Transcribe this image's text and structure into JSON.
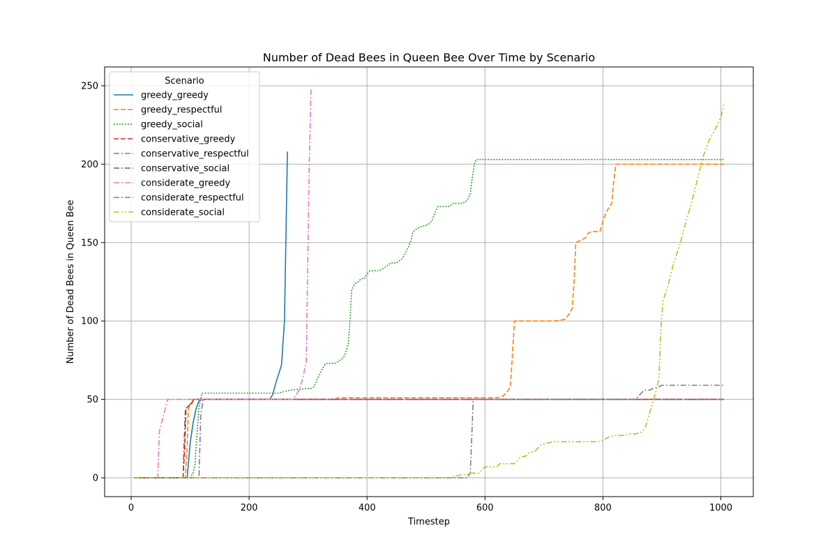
{
  "chart_data": {
    "type": "line",
    "title": "Number of Dead Bees in Queen Bee Over Time by Scenario",
    "xlabel": "Timestep",
    "ylabel": "Number of Dead Bees in Queen Bee",
    "xlim": [
      -45,
      1055
    ],
    "ylim": [
      -12,
      262
    ],
    "xticks": [
      0,
      200,
      400,
      600,
      800,
      1000
    ],
    "yticks": [
      0,
      50,
      100,
      150,
      200,
      250
    ],
    "grid": true,
    "legend": {
      "title": "Scenario",
      "location": "upper left"
    },
    "series": [
      {
        "name": "greedy_greedy",
        "color": "#1f77b4",
        "dash": "solid",
        "points": [
          [
            5,
            0
          ],
          [
            95,
            0
          ],
          [
            100,
            22
          ],
          [
            105,
            35
          ],
          [
            110,
            44
          ],
          [
            115,
            49
          ],
          [
            120,
            50
          ],
          [
            235,
            50
          ],
          [
            240,
            53
          ],
          [
            245,
            60
          ],
          [
            250,
            66
          ],
          [
            255,
            72
          ],
          [
            260,
            100
          ],
          [
            265,
            208
          ]
        ]
      },
      {
        "name": "greedy_respectful",
        "color": "#ff7f0e",
        "dash": "dashed",
        "points": [
          [
            5,
            0
          ],
          [
            92,
            0
          ],
          [
            95,
            20
          ],
          [
            97,
            44
          ],
          [
            100,
            46
          ],
          [
            103,
            47
          ],
          [
            105,
            49
          ],
          [
            108,
            50
          ],
          [
            345,
            50
          ],
          [
            350,
            51
          ],
          [
            620,
            51
          ],
          [
            630,
            52
          ],
          [
            638,
            55
          ],
          [
            643,
            58
          ],
          [
            646,
            75
          ],
          [
            650,
            100
          ],
          [
            720,
            100
          ],
          [
            735,
            101
          ],
          [
            742,
            104
          ],
          [
            748,
            108
          ],
          [
            751,
            125
          ],
          [
            754,
            150
          ],
          [
            760,
            151
          ],
          [
            770,
            153
          ],
          [
            775,
            156
          ],
          [
            781,
            157
          ],
          [
            795,
            157
          ],
          [
            801,
            165
          ],
          [
            808,
            171
          ],
          [
            815,
            175
          ],
          [
            818,
            188
          ],
          [
            822,
            200
          ],
          [
            1005,
            200
          ]
        ]
      },
      {
        "name": "greedy_social",
        "color": "#2ca02c",
        "dash": "dotted",
        "points": [
          [
            5,
            0
          ],
          [
            100,
            0
          ],
          [
            105,
            3
          ],
          [
            108,
            8
          ],
          [
            112,
            30
          ],
          [
            115,
            45
          ],
          [
            120,
            54
          ],
          [
            250,
            54
          ],
          [
            260,
            55
          ],
          [
            270,
            56
          ],
          [
            305,
            57
          ],
          [
            310,
            58
          ],
          [
            318,
            65
          ],
          [
            325,
            70
          ],
          [
            330,
            73
          ],
          [
            335,
            73
          ],
          [
            340,
            73
          ],
          [
            345,
            73
          ],
          [
            350,
            74
          ],
          [
            358,
            76
          ],
          [
            362,
            78
          ],
          [
            368,
            85
          ],
          [
            371,
            100
          ],
          [
            374,
            120
          ],
          [
            380,
            124
          ],
          [
            385,
            125
          ],
          [
            390,
            127
          ],
          [
            395,
            127
          ],
          [
            400,
            130
          ],
          [
            405,
            132
          ],
          [
            410,
            132
          ],
          [
            420,
            132
          ],
          [
            430,
            134
          ],
          [
            440,
            137
          ],
          [
            450,
            137
          ],
          [
            460,
            140
          ],
          [
            470,
            147
          ],
          [
            475,
            152
          ],
          [
            478,
            157
          ],
          [
            485,
            159
          ],
          [
            490,
            160
          ],
          [
            500,
            161
          ],
          [
            505,
            162
          ],
          [
            510,
            164
          ],
          [
            515,
            169
          ],
          [
            520,
            173
          ],
          [
            530,
            173
          ],
          [
            540,
            173
          ],
          [
            545,
            175
          ],
          [
            555,
            175
          ],
          [
            562,
            175
          ],
          [
            570,
            177
          ],
          [
            575,
            181
          ],
          [
            578,
            190
          ],
          [
            582,
            200
          ],
          [
            585,
            203
          ],
          [
            1005,
            203
          ]
        ]
      },
      {
        "name": "conservative_greedy",
        "color": "#d62728",
        "dash": "dashed",
        "points": [
          [
            5,
            0
          ],
          [
            88,
            0
          ],
          [
            91,
            20
          ],
          [
            93,
            44
          ],
          [
            95,
            45
          ],
          [
            98,
            46
          ],
          [
            100,
            47
          ],
          [
            103,
            48
          ],
          [
            106,
            50
          ],
          [
            1005,
            50
          ]
        ]
      },
      {
        "name": "conservative_respectful",
        "color": "#9467bd",
        "dash": "dashdot",
        "points": [
          [
            5,
            0
          ],
          [
            115,
            0
          ],
          [
            118,
            40
          ],
          [
            122,
            50
          ],
          [
            1005,
            50
          ]
        ]
      },
      {
        "name": "conservative_social",
        "color": "#8c564b",
        "dash": "dashdot",
        "points": [
          [
            5,
            0
          ],
          [
            88,
            0
          ],
          [
            90,
            25
          ],
          [
            92,
            44
          ],
          [
            95,
            45
          ],
          [
            98,
            46
          ],
          [
            100,
            47
          ],
          [
            103,
            48
          ],
          [
            106,
            50
          ],
          [
            1005,
            50
          ]
        ]
      },
      {
        "name": "considerate_greedy",
        "color": "#e377c2",
        "dash": "dashdot",
        "points": [
          [
            5,
            0
          ],
          [
            45,
            0
          ],
          [
            48,
            30
          ],
          [
            55,
            40
          ],
          [
            62,
            50
          ],
          [
            275,
            50
          ],
          [
            280,
            53
          ],
          [
            285,
            56
          ],
          [
            290,
            62
          ],
          [
            297,
            74
          ],
          [
            300,
            150
          ],
          [
            302,
            200
          ],
          [
            305,
            248
          ]
        ]
      },
      {
        "name": "considerate_respectful",
        "color": "#7f7f7f",
        "dash": "dashdot",
        "points": [
          [
            5,
            0
          ],
          [
            570,
            0
          ],
          [
            575,
            3
          ],
          [
            578,
            30
          ],
          [
            580,
            50
          ],
          [
            855,
            50
          ],
          [
            860,
            52
          ],
          [
            865,
            54
          ],
          [
            870,
            56
          ],
          [
            880,
            56
          ],
          [
            885,
            57
          ],
          [
            895,
            58
          ],
          [
            900,
            59
          ],
          [
            1005,
            59
          ]
        ]
      },
      {
        "name": "considerate_social",
        "color": "#bcbd22",
        "dash": "dashdotdot",
        "points": [
          [
            5,
            0
          ],
          [
            540,
            0
          ],
          [
            550,
            1
          ],
          [
            560,
            2
          ],
          [
            570,
            2
          ],
          [
            575,
            3
          ],
          [
            590,
            3
          ],
          [
            595,
            5
          ],
          [
            600,
            7
          ],
          [
            610,
            7
          ],
          [
            620,
            7
          ],
          [
            625,
            9
          ],
          [
            635,
            9
          ],
          [
            650,
            9
          ],
          [
            660,
            13
          ],
          [
            670,
            14
          ],
          [
            675,
            16
          ],
          [
            685,
            17
          ],
          [
            695,
            21
          ],
          [
            705,
            22
          ],
          [
            715,
            23
          ],
          [
            740,
            23
          ],
          [
            760,
            23
          ],
          [
            790,
            23
          ],
          [
            800,
            24
          ],
          [
            810,
            26
          ],
          [
            820,
            27
          ],
          [
            835,
            27
          ],
          [
            845,
            28
          ],
          [
            855,
            28
          ],
          [
            865,
            29
          ],
          [
            872,
            32
          ],
          [
            878,
            40
          ],
          [
            885,
            48
          ],
          [
            892,
            58
          ],
          [
            895,
            64
          ],
          [
            899,
            100
          ],
          [
            902,
            113
          ],
          [
            910,
            122
          ],
          [
            920,
            137
          ],
          [
            930,
            148
          ],
          [
            940,
            162
          ],
          [
            950,
            175
          ],
          [
            960,
            190
          ],
          [
            970,
            205
          ],
          [
            980,
            215
          ],
          [
            990,
            222
          ],
          [
            1000,
            230
          ],
          [
            1005,
            238
          ]
        ]
      }
    ]
  }
}
